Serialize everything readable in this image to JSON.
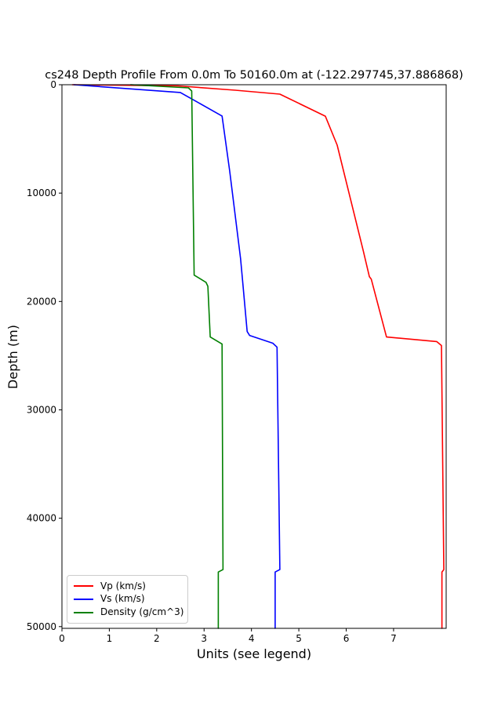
{
  "chart_data": {
    "type": "line",
    "title": "cs248 Depth Profile From 0.0m To 50160.0m at (-122.297745,37.886868)",
    "xlabel": "Units (see legend)",
    "ylabel": "Depth (m)",
    "xlim": [
      0,
      8.11
    ],
    "ylim": [
      50160,
      0
    ],
    "y_axis_inverted_depth": true,
    "grid": false,
    "x_ticks": [
      0,
      1,
      2,
      3,
      4,
      5,
      6,
      7
    ],
    "y_ticks": [
      0,
      10000,
      20000,
      30000,
      40000,
      50000
    ],
    "legend_position": "lower left",
    "background_color": "#ffffff",
    "spine_color": "#000000",
    "series": [
      {
        "name": "Vp (km/s)",
        "color": "#ff0000",
        "points_value_depth": [
          [
            0.22,
            0
          ],
          [
            2.45,
            110
          ],
          [
            3.66,
            510
          ],
          [
            4.6,
            870
          ],
          [
            5.56,
            2900
          ],
          [
            5.81,
            5570
          ],
          [
            6.36,
            15330
          ],
          [
            6.49,
            17720
          ],
          [
            6.53,
            17940
          ],
          [
            6.85,
            23280
          ],
          [
            7.91,
            23700
          ],
          [
            8.01,
            24070
          ],
          [
            8.06,
            44740
          ],
          [
            8.02,
            44960
          ],
          [
            8.02,
            50160
          ]
        ]
      },
      {
        "name": "Vs (km/s)",
        "color": "#0000ff",
        "points_value_depth": [
          [
            0.25,
            0
          ],
          [
            2.5,
            720
          ],
          [
            3.38,
            2890
          ],
          [
            3.54,
            7950
          ],
          [
            3.77,
            16050
          ],
          [
            3.81,
            17940
          ],
          [
            3.91,
            22770
          ],
          [
            3.96,
            23130
          ],
          [
            4.45,
            23850
          ],
          [
            4.54,
            24220
          ],
          [
            4.6,
            44740
          ],
          [
            4.5,
            44960
          ],
          [
            4.5,
            50160
          ]
        ]
      },
      {
        "name": "Density (g/cm^3)",
        "color": "#008000",
        "points_value_depth": [
          [
            1.45,
            0
          ],
          [
            2.67,
            290
          ],
          [
            2.74,
            580
          ],
          [
            2.79,
            17570
          ],
          [
            3.04,
            18230
          ],
          [
            3.08,
            18600
          ],
          [
            3.13,
            23280
          ],
          [
            3.38,
            23930
          ],
          [
            3.4,
            44740
          ],
          [
            3.3,
            44960
          ],
          [
            3.3,
            50160
          ]
        ]
      }
    ]
  }
}
